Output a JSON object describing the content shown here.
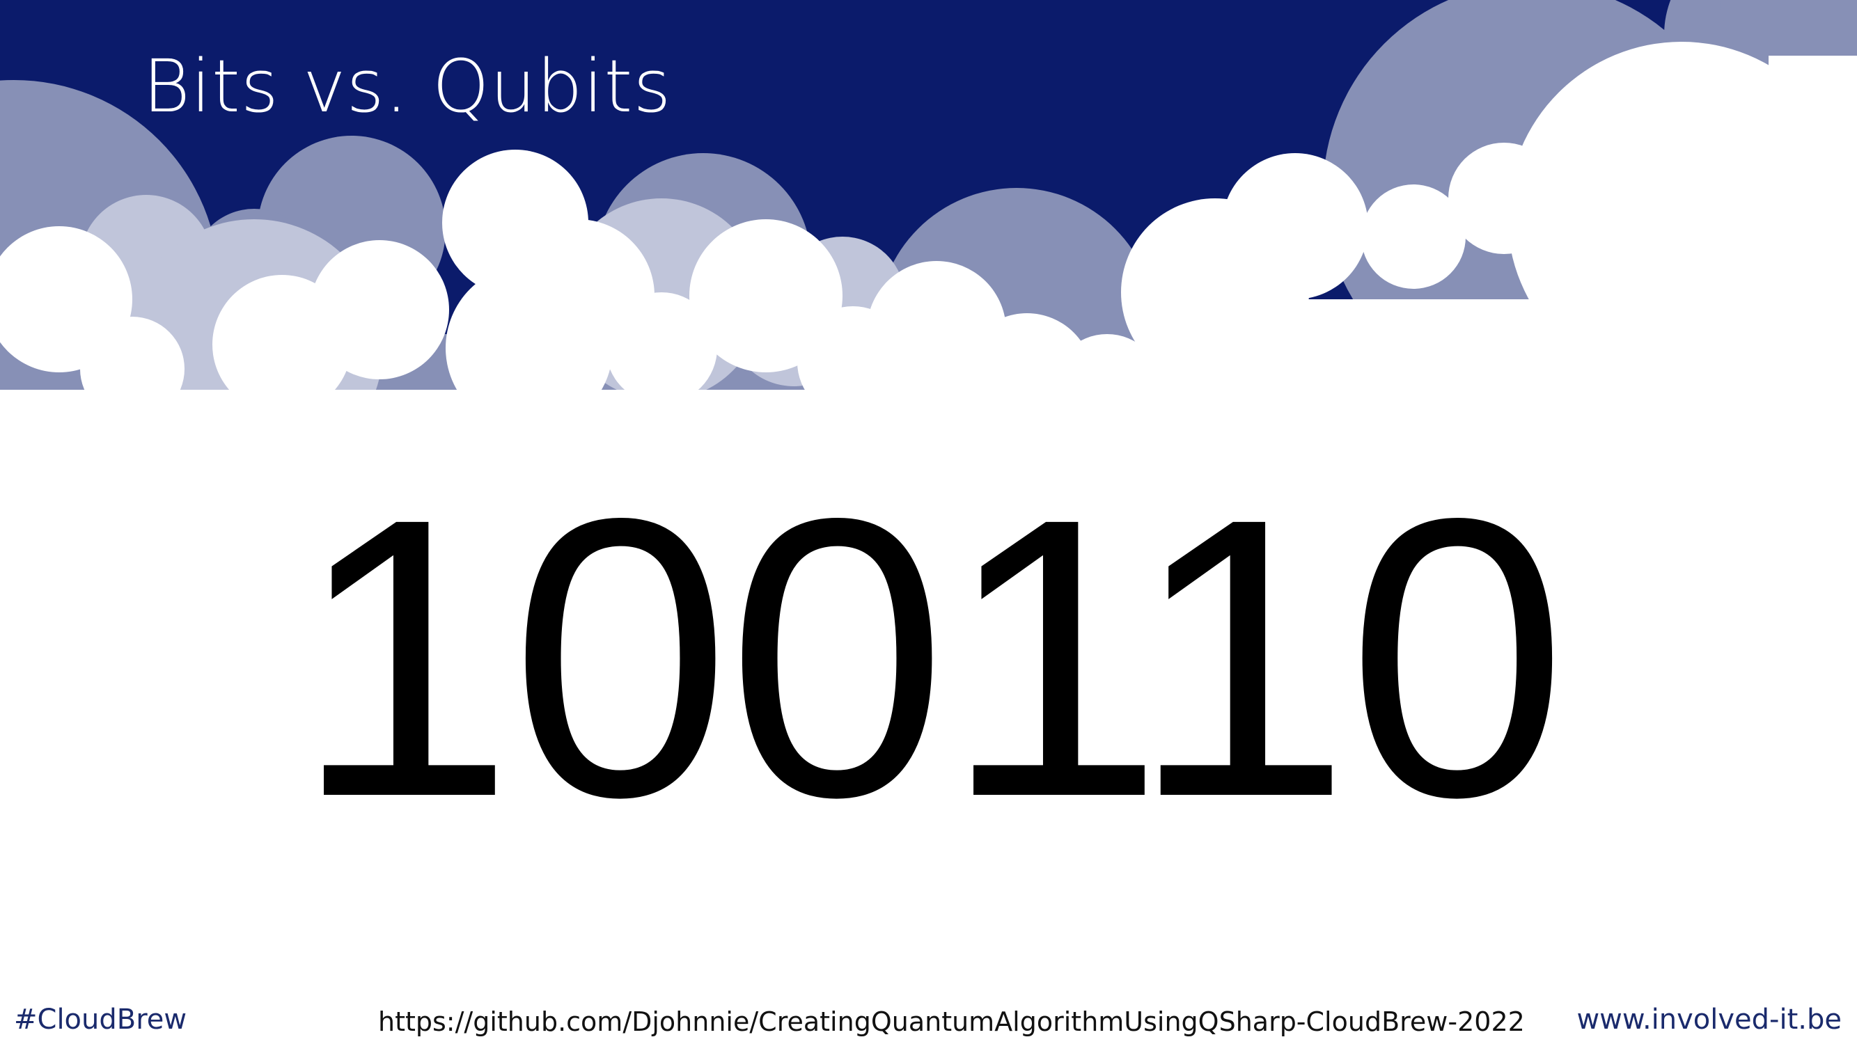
{
  "slide": {
    "title": "Bits vs. Qubits",
    "content": "100110"
  },
  "footer": {
    "hashtag": "#CloudBrew",
    "url": "https://github.com/Djohnnie/CreatingQuantumAlgorithmUsingQSharp-CloudBrew-2022",
    "website": "www.involved-it.be"
  },
  "colors": {
    "header_background": "#0b1b6b",
    "cloud_mid": "#8790b6",
    "cloud_light": "#c0c5da",
    "cloud_white": "#ffffff",
    "footer_accent": "#1a2a6c"
  }
}
